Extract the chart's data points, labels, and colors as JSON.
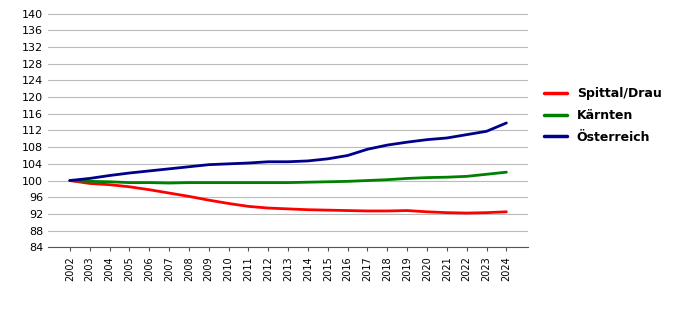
{
  "years": [
    2002,
    2003,
    2004,
    2005,
    2006,
    2007,
    2008,
    2009,
    2010,
    2011,
    2012,
    2013,
    2014,
    2015,
    2016,
    2017,
    2018,
    2019,
    2020,
    2021,
    2022,
    2023,
    2024
  ],
  "spittal": [
    100.0,
    99.3,
    99.0,
    98.5,
    97.8,
    97.0,
    96.2,
    95.3,
    94.5,
    93.8,
    93.4,
    93.2,
    93.0,
    92.9,
    92.8,
    92.7,
    92.7,
    92.8,
    92.5,
    92.3,
    92.2,
    92.3,
    92.5
  ],
  "kaernten": [
    100.0,
    99.8,
    99.7,
    99.5,
    99.5,
    99.4,
    99.5,
    99.5,
    99.5,
    99.5,
    99.5,
    99.5,
    99.6,
    99.7,
    99.8,
    100.0,
    100.2,
    100.5,
    100.7,
    100.8,
    101.0,
    101.5,
    102.0
  ],
  "oesterreich": [
    100.0,
    100.5,
    101.2,
    101.8,
    102.3,
    102.8,
    103.3,
    103.8,
    104.0,
    104.2,
    104.5,
    104.5,
    104.7,
    105.2,
    106.0,
    107.5,
    108.5,
    109.2,
    109.8,
    110.2,
    111.0,
    111.8,
    113.8
  ],
  "spittal_color": "#ff0000",
  "kaernten_color": "#008000",
  "oesterreich_color": "#00008b",
  "ylim": [
    84,
    141
  ],
  "yticks": [
    84,
    88,
    92,
    96,
    100,
    104,
    108,
    112,
    116,
    120,
    124,
    128,
    132,
    136,
    140
  ],
  "legend_labels": [
    "Spittal/Drau",
    "Kärnten",
    "Österreich"
  ],
  "linewidth": 2.0,
  "background_color": "#ffffff",
  "grid_color": "#bbbbbb",
  "ytick_fontsize": 8,
  "xtick_fontsize": 7,
  "legend_fontsize": 9
}
